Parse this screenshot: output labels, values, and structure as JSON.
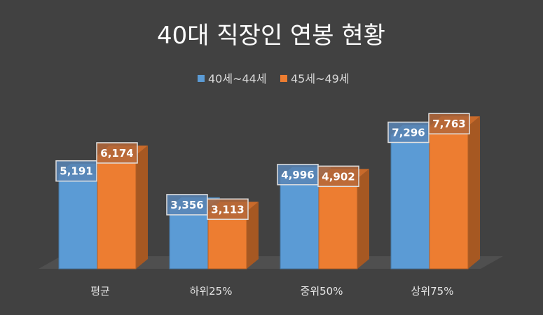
{
  "chart_data": {
    "type": "bar",
    "title": "40대 직장인 연봉 현황",
    "categories": [
      "평균",
      "하위25%",
      "중위50%",
      "상위75%"
    ],
    "series": [
      {
        "name": "40세~44세",
        "values": [
          5191,
          3356,
          4996,
          7296
        ],
        "labels": [
          "5,191",
          "3,356",
          "4,996",
          "7,296"
        ],
        "color": "#5b9bd5"
      },
      {
        "name": "45세~49세",
        "values": [
          6174,
          3113,
          4902,
          7763
        ],
        "labels": [
          "6,174",
          "3,113",
          "4,902",
          "7,763"
        ],
        "color": "#ed7d31"
      }
    ],
    "ylim": [
      0,
      8500
    ],
    "grid": false,
    "legend_position": "top",
    "style": "3d-clustered-column",
    "background": "#414141"
  }
}
